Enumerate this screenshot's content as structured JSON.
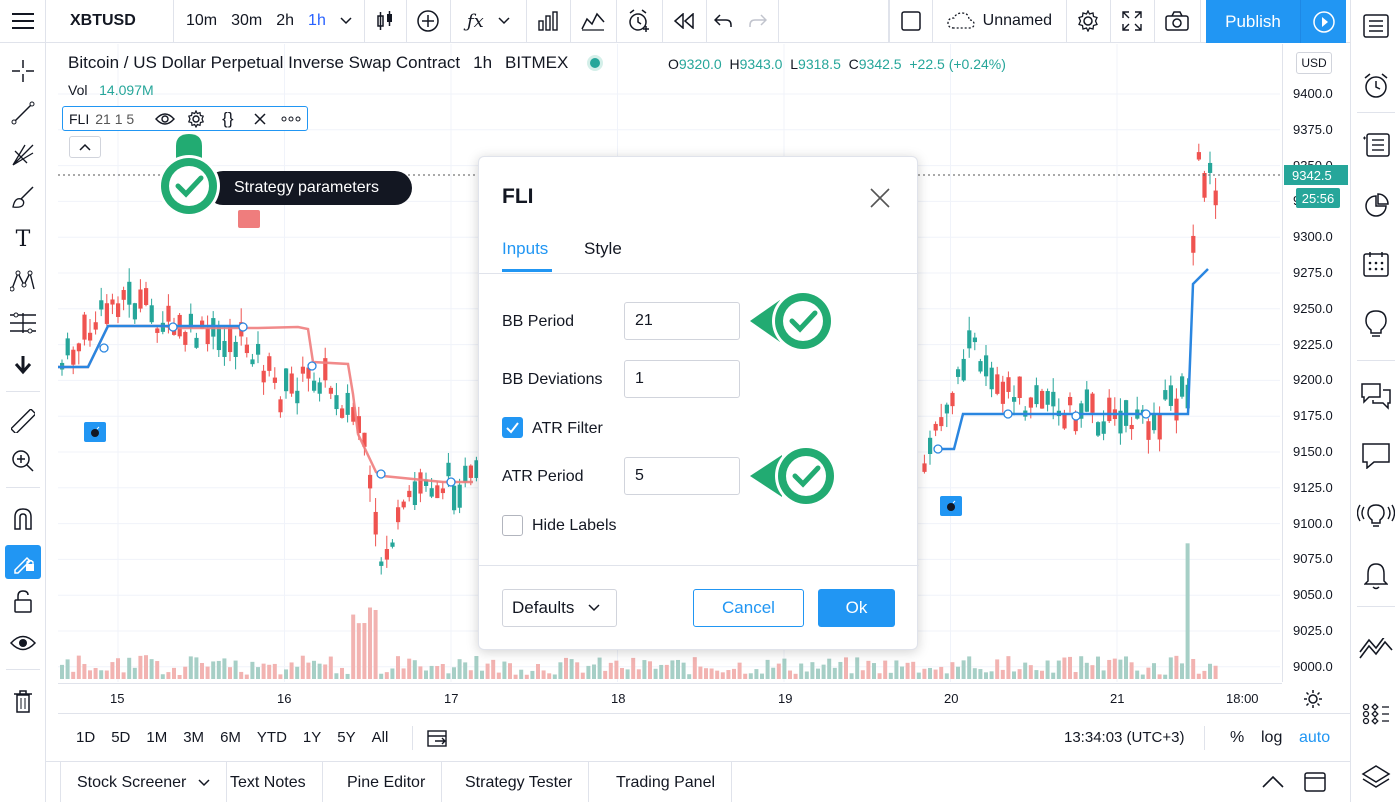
{
  "topbar": {
    "symbol": "XBTUSD",
    "intervals": [
      "10m",
      "30m",
      "2h",
      "1h"
    ],
    "active_interval": "1h",
    "layout_name": "Unnamed",
    "publish_label": "Publish"
  },
  "legend": {
    "title": "Bitcoin / US Dollar Perpetual Inverse Swap Contract",
    "interval": "1h",
    "exchange": "BITMEX",
    "open_label": "O",
    "open": "9320.0",
    "high_label": "H",
    "high": "9343.0",
    "low_label": "L",
    "low": "9318.5",
    "close_label": "C",
    "close": "9342.5",
    "change": "+22.5 (+0.24%)",
    "vol_label": "Vol",
    "vol_value": "14.097M"
  },
  "study": {
    "name": "FLI",
    "params": "21 1 5",
    "tooltip": "Strategy parameters"
  },
  "price_axis": {
    "currency": "USD",
    "ticks": [
      "9400.0",
      "9375.0",
      "9350.0",
      "9325.0",
      "9300.0",
      "9275.0",
      "9250.0",
      "9225.0",
      "9200.0",
      "9175.0",
      "9150.0",
      "9125.0",
      "9100.0",
      "9075.0",
      "9050.0",
      "9025.0",
      "9000.0"
    ],
    "last_price": "9342.5",
    "countdown": "25:56"
  },
  "time_axis": {
    "ticks": [
      "15",
      "16",
      "17",
      "18",
      "19",
      "20",
      "21",
      "18:00"
    ]
  },
  "bottombar": {
    "ranges": [
      "1D",
      "5D",
      "1M",
      "3M",
      "6M",
      "YTD",
      "1Y",
      "5Y",
      "All"
    ],
    "clock": "13:34:03 (UTC+3)",
    "percent": "%",
    "log": "log",
    "auto": "auto"
  },
  "footer": {
    "tabs": [
      "Stock Screener",
      "Text Notes",
      "Pine Editor",
      "Strategy Tester",
      "Trading Panel"
    ]
  },
  "dialog": {
    "title": "FLI",
    "tabs": [
      "Inputs",
      "Style"
    ],
    "bb_period_label": "BB Period",
    "bb_period_value": "21",
    "bb_dev_label": "BB Deviations",
    "bb_dev_value": "1",
    "atr_filter_label": "ATR Filter",
    "atr_filter_checked": true,
    "atr_period_label": "ATR Period",
    "atr_period_value": "5",
    "hide_labels_label": "Hide Labels",
    "hide_labels_checked": false,
    "defaults_label": "Defaults",
    "cancel_label": "Cancel",
    "ok_label": "Ok"
  },
  "colors": {
    "accent": "#2196f3",
    "up": "#26a69a",
    "down": "#ef5350",
    "badge_green": "#22ab72"
  }
}
